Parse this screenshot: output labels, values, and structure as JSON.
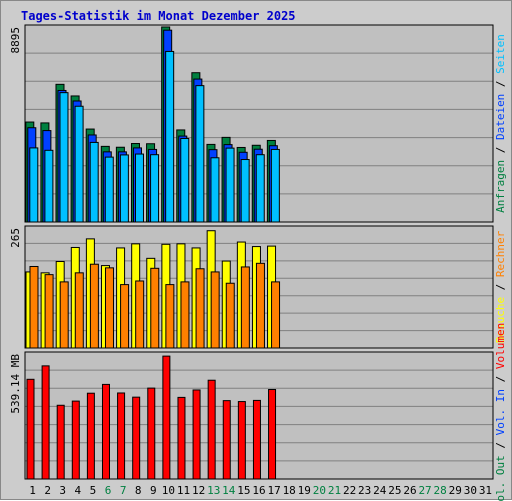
{
  "title": "Tages-Statistik im Monat Dezember 2025",
  "colors": {
    "frame_bg": "#cccccc",
    "plot_bg": "#c0c0c0",
    "grid": "#808080",
    "title": "#0000cc",
    "day_weekday": "#000000",
    "day_weekend": "#008040",
    "anfragen": "#008040",
    "dateien": "#0040ff",
    "seiten": "#00c0ff",
    "besuche": "#ffff00",
    "rechner": "#ff8000",
    "vol_out": "#008040",
    "vol_in": "#0040ff",
    "volumen": "#ff0000"
  },
  "legend_right": {
    "panel1": [
      {
        "text": "Anfragen",
        "color_key": "anfragen"
      },
      {
        "text": "/",
        "color_key": "separator"
      },
      {
        "text": "Dateien",
        "color_key": "dateien"
      },
      {
        "text": "/",
        "color_key": "separator"
      },
      {
        "text": "Seiten",
        "color_key": "seiten"
      }
    ],
    "panel2": [
      {
        "text": "Besuche",
        "color_key": "besuche"
      },
      {
        "text": "/",
        "color_key": "separator"
      },
      {
        "text": "Rechner",
        "color_key": "rechner"
      }
    ],
    "panel3": [
      {
        "text": "Vol. Out",
        "color_key": "vol_out"
      },
      {
        "text": "/",
        "color_key": "separator"
      },
      {
        "text": "Vol. In",
        "color_key": "vol_in"
      },
      {
        "text": "/",
        "color_key": "separator"
      },
      {
        "text": "Volumen",
        "color_key": "volumen"
      }
    ]
  },
  "chart_data": [
    {
      "type": "bar",
      "panel": "hits",
      "ymax_label": "8895",
      "ylim": [
        0,
        8895
      ],
      "x": [
        "1",
        "2",
        "3",
        "4",
        "5",
        "6",
        "7",
        "8",
        "9",
        "10",
        "11",
        "12",
        "13",
        "14",
        "15",
        "16",
        "17"
      ],
      "series": [
        {
          "name": "Anfragen",
          "values": [
            4560,
            4520,
            6280,
            5750,
            4240,
            3450,
            3410,
            3580,
            3570,
            8895,
            4200,
            6810,
            3540,
            3860,
            3400,
            3500,
            3720
          ]
        },
        {
          "name": "Dateien",
          "values": [
            4300,
            4170,
            6000,
            5520,
            3970,
            3200,
            3200,
            3380,
            3310,
            8750,
            3920,
            6520,
            3300,
            3530,
            3180,
            3320,
            3480
          ]
        },
        {
          "name": "Seiten",
          "values": [
            3380,
            3270,
            5900,
            5280,
            3630,
            2960,
            3060,
            3100,
            3070,
            7780,
            3810,
            6220,
            2930,
            3370,
            2850,
            3070,
            3310
          ]
        }
      ]
    },
    {
      "type": "bar",
      "panel": "visits",
      "ymax_label": "265",
      "ylim": [
        0,
        265
      ],
      "x": [
        "1",
        "2",
        "3",
        "4",
        "5",
        "6",
        "7",
        "8",
        "9",
        "10",
        "11",
        "12",
        "13",
        "14",
        "15",
        "16",
        "17"
      ],
      "series": [
        {
          "name": "Besuche",
          "values": [
            168,
            166,
            191,
            222,
            241,
            182,
            221,
            230,
            198,
            229,
            230,
            221,
            259,
            192,
            234,
            224,
            225
          ]
        },
        {
          "name": "Rechner",
          "values": [
            180,
            162,
            146,
            166,
            185,
            177,
            140,
            148,
            176,
            140,
            146,
            175,
            168,
            143,
            179,
            187,
            146
          ]
        }
      ]
    },
    {
      "type": "bar",
      "panel": "volume",
      "ymax_label": "539.14 MB",
      "ylim": [
        0,
        539.14
      ],
      "x": [
        "1",
        "2",
        "3",
        "4",
        "5",
        "6",
        "7",
        "8",
        "9",
        "10",
        "11",
        "12",
        "13",
        "14",
        "15",
        "16",
        "17"
      ],
      "series": [
        {
          "name": "Volumen",
          "values": [
            430,
            488,
            318,
            336,
            370,
            408,
            371,
            353,
            392,
            530,
            352,
            384,
            426,
            338,
            334,
            339,
            386
          ]
        }
      ]
    }
  ],
  "days": [
    {
      "label": "1",
      "weekend": false
    },
    {
      "label": "2",
      "weekend": false
    },
    {
      "label": "3",
      "weekend": false
    },
    {
      "label": "4",
      "weekend": false
    },
    {
      "label": "5",
      "weekend": false
    },
    {
      "label": "6",
      "weekend": true
    },
    {
      "label": "7",
      "weekend": true
    },
    {
      "label": "8",
      "weekend": false
    },
    {
      "label": "9",
      "weekend": false
    },
    {
      "label": "10",
      "weekend": false
    },
    {
      "label": "11",
      "weekend": false
    },
    {
      "label": "12",
      "weekend": false
    },
    {
      "label": "13",
      "weekend": true
    },
    {
      "label": "14",
      "weekend": true
    },
    {
      "label": "15",
      "weekend": false
    },
    {
      "label": "16",
      "weekend": false
    },
    {
      "label": "17",
      "weekend": false
    },
    {
      "label": "18",
      "weekend": false
    },
    {
      "label": "19",
      "weekend": false
    },
    {
      "label": "20",
      "weekend": true
    },
    {
      "label": "21",
      "weekend": true
    },
    {
      "label": "22",
      "weekend": false
    },
    {
      "label": "23",
      "weekend": false
    },
    {
      "label": "24",
      "weekend": false
    },
    {
      "label": "25",
      "weekend": false
    },
    {
      "label": "26",
      "weekend": false
    },
    {
      "label": "27",
      "weekend": true
    },
    {
      "label": "28",
      "weekend": true
    },
    {
      "label": "29",
      "weekend": false
    },
    {
      "label": "30",
      "weekend": false
    },
    {
      "label": "31",
      "weekend": false
    }
  ]
}
